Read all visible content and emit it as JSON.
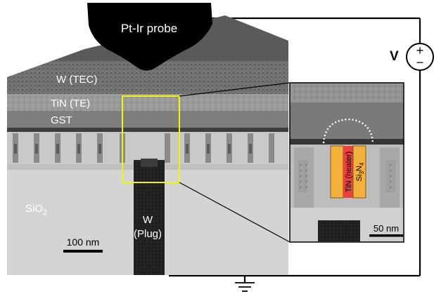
{
  "probe": {
    "label": "Pt-Ir probe"
  },
  "source": {
    "label": "V",
    "plus": "+",
    "minus": "−"
  },
  "layers": {
    "tec": "W (TEC)",
    "te": "TiN (TE)",
    "gst": "GST",
    "sio2_base": "SiO",
    "sio2_sub": "2",
    "plug_line1": "W",
    "plug_line2": "(Plug)"
  },
  "inset": {
    "heater_label": "TiN (heater)",
    "nitride_si": "Si",
    "nitride_sub1": "3",
    "nitride_n": "N",
    "nitride_sub2": "4",
    "scalebar": "50 nm"
  },
  "scalebar_main": "100 nm",
  "colors": {
    "zoom_box": "#f2f20a",
    "heater": "#e8423f",
    "nitride": "#f3b03b",
    "wire": "#000000",
    "dome": "#ffffff"
  }
}
